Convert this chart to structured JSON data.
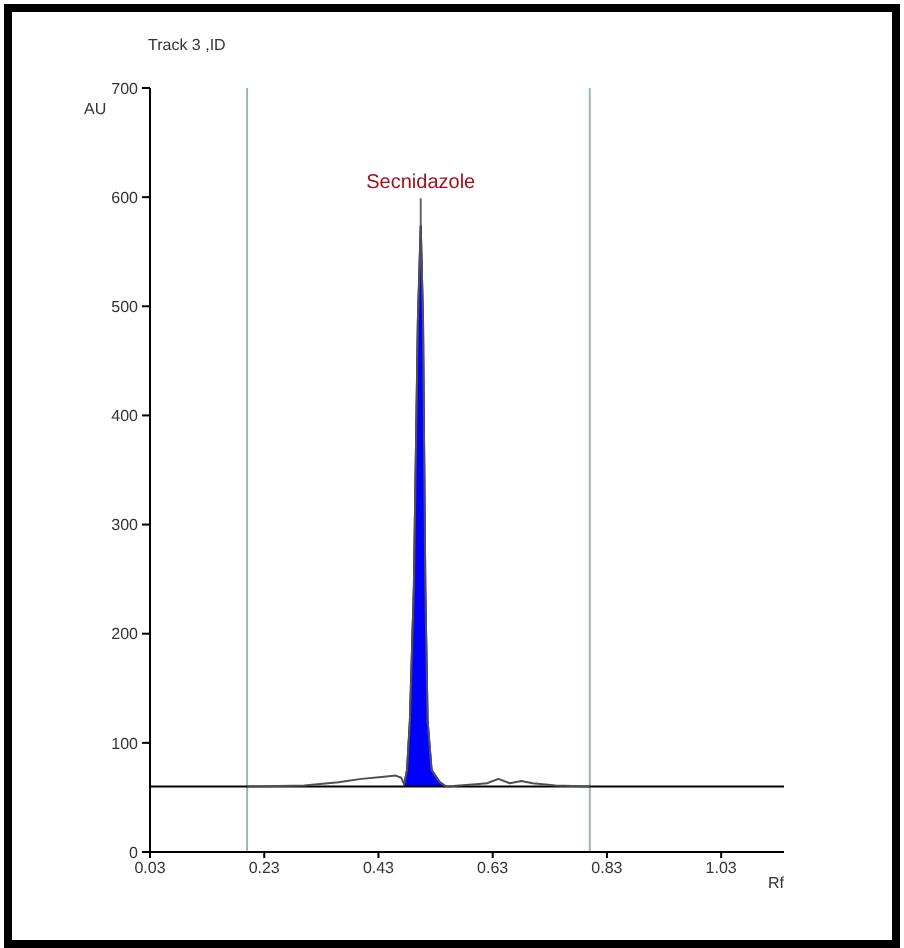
{
  "chart_data": {
    "type": "line",
    "title": "Track 3 ,ID",
    "xlabel": "Rf",
    "ylabel": "AU",
    "annotations": [
      {
        "text": "Secnidazole",
        "x": 0.504,
        "y": 574
      }
    ],
    "series": [
      {
        "color": "#505050",
        "x": [
          0.2,
          0.3,
          0.36,
          0.4,
          0.44,
          0.46,
          0.47,
          0.475,
          0.48,
          0.485,
          0.492,
          0.499,
          0.504,
          0.508,
          0.512,
          0.516,
          0.523,
          0.537,
          0.545,
          0.55,
          0.6,
          0.62,
          0.64,
          0.66,
          0.68,
          0.7,
          0.74,
          0.8
        ],
        "values": [
          60,
          61,
          64,
          67,
          69,
          70,
          68,
          62,
          75,
          120,
          243,
          487,
          574,
          487,
          243,
          120,
          75,
          64,
          61,
          60,
          62,
          63,
          67,
          63,
          65,
          63,
          61,
          60
        ]
      },
      {
        "type": "area",
        "color": "#0000ff",
        "x": [
          0.475,
          0.48,
          0.485,
          0.492,
          0.499,
          0.504,
          0.508,
          0.512,
          0.516,
          0.523,
          0.537,
          0.545
        ],
        "values": [
          62,
          75,
          120,
          243,
          487,
          574,
          487,
          243,
          120,
          75,
          64,
          61
        ]
      }
    ],
    "xlim": [
      0.03,
      1.14
    ],
    "xticks": [
      0.03,
      0.23,
      0.43,
      0.63,
      0.83,
      1.03
    ],
    "ylim": [
      0,
      700
    ],
    "yticks": [
      0,
      100,
      200,
      300,
      400,
      500,
      600,
      700
    ],
    "ref_lines": [
      {
        "axis": "x",
        "value": 0.2,
        "color": "#a0b4b4"
      },
      {
        "axis": "x",
        "value": 0.8,
        "color": "#a0b4b4"
      },
      {
        "axis": "y",
        "value": 60,
        "color": "#000000"
      }
    ],
    "grid": false,
    "marker": "none",
    "line_style": "solid"
  }
}
